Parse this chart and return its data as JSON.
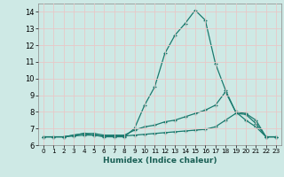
{
  "xlabel": "Humidex (Indice chaleur)",
  "xlim": [
    -0.5,
    23.5
  ],
  "ylim": [
    6.0,
    14.5
  ],
  "yticks": [
    6,
    7,
    8,
    9,
    10,
    11,
    12,
    13,
    14
  ],
  "xticks": [
    0,
    1,
    2,
    3,
    4,
    5,
    6,
    7,
    8,
    9,
    10,
    11,
    12,
    13,
    14,
    15,
    16,
    17,
    18,
    19,
    20,
    21,
    22,
    23
  ],
  "bg_color": "#cee9e5",
  "grid_color": "#e8c8c8",
  "line_color": "#1a7a6e",
  "line1_x": [
    0,
    1,
    2,
    3,
    4,
    5,
    6,
    7,
    8,
    9,
    10,
    11,
    12,
    13,
    14,
    15,
    16,
    17,
    18,
    19,
    20,
    21,
    22,
    23
  ],
  "line1_y": [
    6.5,
    6.5,
    6.5,
    6.6,
    6.7,
    6.6,
    6.5,
    6.5,
    6.5,
    7.0,
    8.4,
    9.5,
    11.5,
    12.6,
    13.3,
    14.1,
    13.5,
    10.9,
    9.3,
    8.0,
    7.5,
    7.1,
    6.5,
    6.5
  ],
  "line2_x": [
    0,
    1,
    2,
    3,
    4,
    5,
    6,
    7,
    8,
    9,
    10,
    11,
    12,
    13,
    14,
    15,
    16,
    17,
    18,
    19,
    20,
    21,
    22,
    23
  ],
  "line2_y": [
    6.5,
    6.5,
    6.5,
    6.6,
    6.7,
    6.7,
    6.6,
    6.6,
    6.6,
    6.9,
    7.1,
    7.2,
    7.4,
    7.5,
    7.7,
    7.9,
    8.1,
    8.4,
    9.2,
    8.0,
    7.9,
    7.5,
    6.5,
    6.5
  ],
  "line3_x": [
    0,
    1,
    2,
    3,
    4,
    5,
    6,
    7,
    8,
    9,
    10,
    11,
    12,
    13,
    14,
    15,
    16,
    17,
    18,
    19,
    20,
    21,
    22,
    23
  ],
  "line3_y": [
    6.5,
    6.5,
    6.5,
    6.55,
    6.6,
    6.6,
    6.55,
    6.55,
    6.55,
    6.6,
    6.65,
    6.7,
    6.75,
    6.8,
    6.85,
    6.9,
    6.95,
    7.1,
    7.5,
    7.9,
    7.85,
    7.3,
    6.5,
    6.5
  ]
}
